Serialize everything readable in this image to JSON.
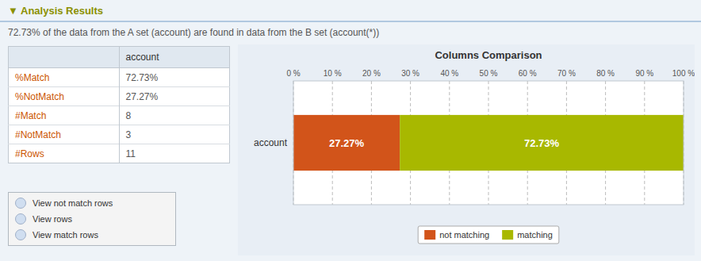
{
  "page": {
    "title": "▼ Analysis Results",
    "subtitle": "72.73% of the data from the A set (account) are found in data from the B set (account(*))",
    "table": {
      "header": "account",
      "rows": [
        [
          "%Match",
          "72.73%"
        ],
        [
          "%NotMatch",
          "27.27%"
        ],
        [
          "#Match",
          "8"
        ],
        [
          "#NotMatch",
          "3"
        ],
        [
          "#Rows",
          "11"
        ]
      ]
    },
    "menu_items": [
      "View not match rows",
      "View rows",
      "View match rows"
    ]
  },
  "chart_data": {
    "type": "bar",
    "orientation": "horizontal",
    "stacked": true,
    "title": "Columns Comparison",
    "categories": [
      "account"
    ],
    "series": [
      {
        "name": "not matching",
        "color": "#D2541A",
        "values": [
          27.27
        ],
        "value_labels": [
          "27.27%"
        ]
      },
      {
        "name": "matching",
        "color": "#A8B800",
        "values": [
          72.73
        ],
        "value_labels": [
          "72.73%"
        ]
      }
    ],
    "xlim": [
      0,
      100
    ],
    "xticks": [
      {
        "value": 0,
        "label": "0 %"
      },
      {
        "value": 10,
        "label": "10 %"
      },
      {
        "value": 20,
        "label": "20 %"
      },
      {
        "value": 30,
        "label": "30 %"
      },
      {
        "value": 40,
        "label": "40 %"
      },
      {
        "value": 50,
        "label": "50 %"
      },
      {
        "value": 60,
        "label": "60 %"
      },
      {
        "value": 70,
        "label": "70 %"
      },
      {
        "value": 80,
        "label": "80 %"
      },
      {
        "value": 90,
        "label": "90 %"
      },
      {
        "value": 100,
        "label": "100 %"
      }
    ],
    "grid": true,
    "data_labels": true,
    "legend": "bottom"
  }
}
